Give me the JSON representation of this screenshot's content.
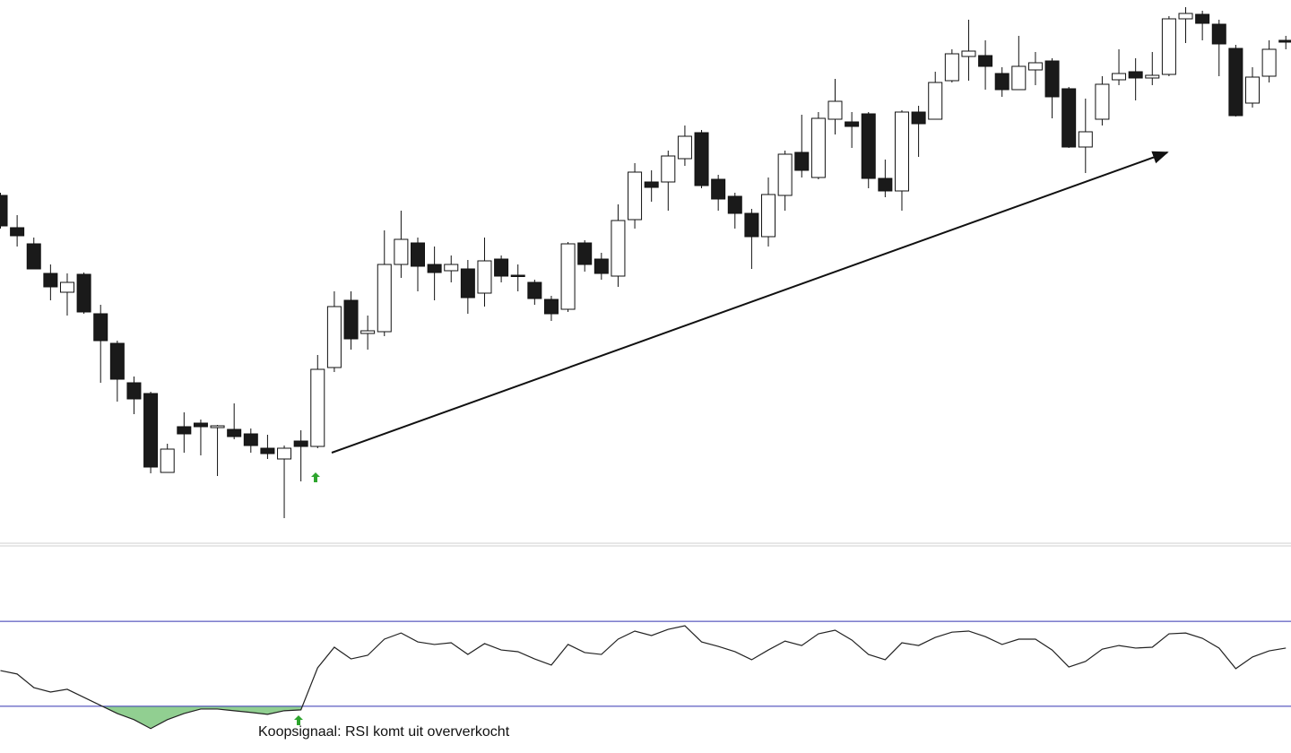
{
  "chart_data": [
    {
      "type": "candlestick",
      "categories": [
        null,
        null,
        null,
        null,
        null,
        null,
        null,
        null,
        null,
        null,
        null,
        null,
        null,
        null,
        null,
        null,
        null,
        null,
        null,
        null,
        null,
        null,
        null,
        null,
        null,
        null,
        null,
        null,
        null,
        null,
        null,
        null,
        null,
        null,
        null,
        null,
        null,
        null,
        null,
        null,
        null,
        null,
        null,
        null,
        null,
        null,
        null,
        null,
        null,
        null,
        null,
        null,
        null,
        null,
        null,
        null,
        null,
        null,
        null,
        null,
        null,
        null,
        null,
        null,
        null,
        null,
        null,
        null,
        null,
        null,
        null,
        null,
        null,
        null,
        null,
        null,
        null,
        null
      ],
      "open": [
        382,
        346,
        328,
        295,
        274,
        294,
        250,
        217,
        173,
        161,
        73,
        124,
        128,
        123,
        121,
        116,
        100,
        88,
        108,
        102,
        190,
        265,
        228,
        230,
        305,
        329,
        305,
        298,
        300,
        273,
        311,
        293,
        285,
        266,
        255,
        329,
        311,
        292,
        355,
        397,
        397,
        423,
        452,
        400,
        381,
        362,
        336,
        382,
        430,
        402,
        467,
        464,
        473,
        401,
        387,
        475,
        467,
        510,
        537,
        538,
        518,
        500,
        522,
        532,
        501,
        436,
        467,
        511,
        520,
        513,
        517,
        579,
        584,
        573,
        546,
        485,
        515,
        555
      ],
      "high": [
        385,
        360,
        335,
        305,
        295,
        296,
        260,
        220,
        180,
        163,
        105,
        140,
        132,
        126,
        150,
        122,
        115,
        103,
        120,
        204,
        275,
        275,
        248,
        343,
        365,
        335,
        325,
        315,
        310,
        335,
        315,
        305,
        288,
        270,
        330,
        332,
        318,
        372,
        418,
        410,
        432,
        460,
        455,
        405,
        385,
        367,
        402,
        432,
        472,
        475,
        512,
        475,
        475,
        422,
        477,
        482,
        520,
        545,
        578,
        555,
        525,
        560,
        542,
        535,
        503,
        490,
        515,
        545,
        535,
        542,
        582,
        592,
        588,
        578,
        550,
        525,
        555,
        560
      ],
      "low": [
        345,
        325,
        300,
        265,
        248,
        250,
        173,
        152,
        138,
        72,
        73,
        95,
        92,
        69,
        110,
        95,
        88,
        22,
        63,
        100,
        185,
        210,
        210,
        225,
        290,
        275,
        265,
        285,
        250,
        258,
        285,
        275,
        260,
        242,
        252,
        297,
        288,
        280,
        345,
        375,
        365,
        415,
        390,
        365,
        345,
        300,
        325,
        365,
        402,
        400,
        450,
        435,
        390,
        380,
        365,
        425,
        467,
        508,
        510,
        500,
        492,
        500,
        505,
        468,
        435,
        407,
        460,
        505,
        488,
        505,
        515,
        552,
        555,
        515,
        470,
        480,
        508,
        545
      ],
      "close": [
        348,
        337,
        300,
        280,
        285,
        252,
        220,
        177,
        155,
        79,
        99,
        116,
        124,
        125,
        113,
        103,
        94,
        100,
        102,
        188,
        258,
        222,
        231,
        305,
        333,
        303,
        296,
        305,
        268,
        309,
        292,
        292,
        267,
        250,
        328,
        305,
        295,
        354,
        408,
        391,
        426,
        448,
        393,
        378,
        362,
        336,
        383,
        428,
        410,
        468,
        487,
        459,
        401,
        387,
        475,
        462,
        508,
        540,
        543,
        526,
        500,
        526,
        530,
        492,
        436,
        453,
        506,
        518,
        513,
        516,
        579,
        585,
        574,
        551,
        471,
        514,
        545,
        553
      ],
      "up_color": "#ffffff",
      "down_color": "#1a1a1a",
      "ylim": [
        0,
        600
      ]
    },
    {
      "type": "line",
      "categories": [
        null,
        null,
        null,
        null,
        null,
        null,
        null,
        null,
        null,
        null,
        null,
        null,
        null,
        null,
        null,
        null,
        null,
        null,
        null,
        null,
        null,
        null,
        null,
        null,
        null,
        null,
        null,
        null,
        null,
        null,
        null,
        null,
        null,
        null,
        null,
        null,
        null,
        null,
        null,
        null,
        null,
        null,
        null,
        null,
        null,
        null,
        null,
        null,
        null,
        null,
        null,
        null,
        null,
        null,
        null,
        null,
        null,
        null,
        null,
        null,
        null,
        null,
        null,
        null,
        null,
        null,
        null,
        null,
        null,
        null,
        null,
        null,
        null,
        null,
        null,
        null,
        null,
        null
      ],
      "values": [
        46.8,
        45.2,
        38.8,
        36.7,
        38,
        34.2,
        30.4,
        26.6,
        23.7,
        19.5,
        23.7,
        26.6,
        28.7,
        28.7,
        27.9,
        27.1,
        26.2,
        27.9,
        28.3,
        48.1,
        57.8,
        52.3,
        54,
        61.6,
        64.5,
        60.3,
        59.1,
        59.9,
        54.4,
        59.5,
        56.5,
        55.7,
        52.3,
        49.4,
        59.1,
        55.3,
        54.4,
        61.6,
        65.4,
        63.3,
        66.2,
        67.9,
        60.3,
        58.2,
        55.7,
        51.9,
        56.5,
        60.7,
        58.6,
        64.1,
        65.8,
        61.2,
        54.4,
        51.9,
        59.9,
        58.6,
        62.4,
        64.9,
        65.4,
        62.8,
        59.1,
        61.6,
        61.6,
        56.5,
        48.5,
        51.1,
        56.9,
        58.6,
        57.4,
        57.8,
        64.1,
        64.5,
        62,
        57.4,
        47.7,
        53.2,
        56.1,
        57.4
      ],
      "color": "#222222",
      "levels": [
        30,
        70
      ],
      "level_color": "#3535b0",
      "fill_color": "#6cbf6c",
      "ylim": [
        8,
        100
      ],
      "annotation": "Koopsignaal: RSI komt uit oververkocht"
    }
  ]
}
